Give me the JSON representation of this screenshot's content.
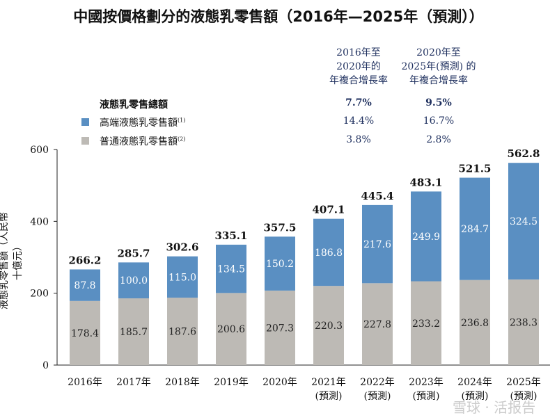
{
  "title": "中國按價格劃分的液態乳零售額（2016年—2025年（預測））",
  "cagr": {
    "headers": [
      [
        "2016年至",
        "2020年的",
        "年複合增長率"
      ],
      [
        "2020年至",
        "2025年(預測) 的",
        "年複合增長率"
      ]
    ],
    "rows": [
      {
        "label": "液態乳零售總額",
        "values": [
          "7.7%",
          "9.5%"
        ],
        "bold": true
      },
      {
        "label": "高端液態乳零售額",
        "note": "(1)",
        "values": [
          "14.4%",
          "16.7%"
        ]
      },
      {
        "label": "普通液態乳零售額",
        "note": "(2)",
        "values": [
          "3.8%",
          "2.8%"
        ]
      }
    ]
  },
  "watermark": "雪球 · 活报告",
  "chart_data": {
    "type": "bar",
    "stacked": true,
    "ylabel": "液態乳零售額（人民幣十億元）",
    "ylim": [
      0,
      600
    ],
    "yticks": [
      0,
      200,
      400,
      600
    ],
    "grid": false,
    "categories": [
      [
        "2016年"
      ],
      [
        "2017年"
      ],
      [
        "2018年"
      ],
      [
        "2019年"
      ],
      [
        "2020年"
      ],
      [
        "2021年",
        "(預測)"
      ],
      [
        "2022年",
        "(預測)"
      ],
      [
        "2023年",
        "(預測)"
      ],
      [
        "2024年",
        "(預測)"
      ],
      [
        "2025年",
        "(預測)"
      ]
    ],
    "series": [
      {
        "name": "普通液態乳零售額",
        "color": "#bdbab5",
        "values": [
          178.4,
          185.7,
          187.6,
          200.6,
          207.3,
          220.3,
          227.8,
          233.2,
          236.8,
          238.3
        ]
      },
      {
        "name": "高端液態乳零售額",
        "color": "#5a8fc2",
        "values": [
          87.8,
          100.0,
          115.0,
          134.5,
          150.2,
          186.8,
          217.6,
          249.9,
          284.7,
          324.5
        ]
      }
    ],
    "totals": [
      "266.2",
      "285.7",
      "302.6",
      "335.1",
      "357.5",
      "407.1",
      "445.4",
      "483.1",
      "521.5",
      "562.8"
    ]
  }
}
